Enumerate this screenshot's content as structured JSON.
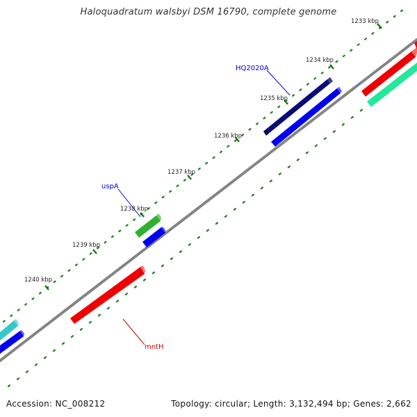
{
  "title": "Haloquadratum walsbyi DSM 16790, complete genome",
  "footer": {
    "accession": "Accession: NC_008212",
    "summary": "Topology: circular; Length: 3,132,494 bp; Genes: 2,662"
  },
  "ticks": [
    {
      "label": "1233 kbp",
      "id": "1233"
    },
    {
      "label": "1234 kbp",
      "id": "1234"
    },
    {
      "label": "1235 kbp",
      "id": "1235"
    },
    {
      "label": "1236 kbp",
      "id": "1236"
    },
    {
      "label": "1237 kbp",
      "id": "1237"
    },
    {
      "label": "1238 kbp",
      "id": "1238"
    },
    {
      "label": "1239 kbp",
      "id": "1239"
    },
    {
      "label": "1240 kbp",
      "id": "1240"
    }
  ],
  "gene_labels": {
    "hq2020a": "HQ2020A",
    "uspa": "uspA",
    "mnth": "mntH"
  },
  "colors": {
    "backbone": "#808080",
    "tick_green": "#1a7a1a",
    "label_blue": "#0000cc",
    "label_red": "#cc0000",
    "navy": "#0a0a78",
    "blue": "#0000ee",
    "red": "#ee0000",
    "green": "#33bb33",
    "cyan": "#33c9c9",
    "aqua_green": "#22e89a"
  }
}
